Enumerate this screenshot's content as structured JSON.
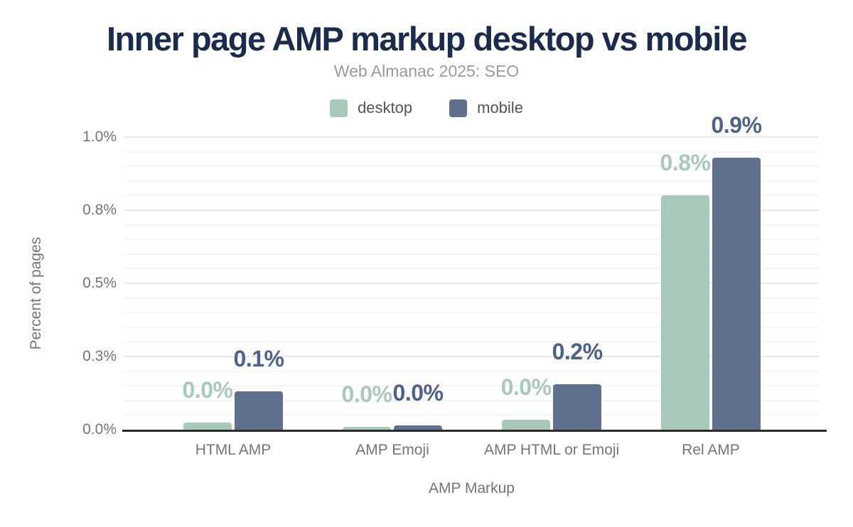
{
  "chart_data": {
    "type": "bar",
    "title": "Inner page AMP markup desktop vs mobile",
    "subtitle": "Web Almanac 2025: SEO",
    "xlabel": "AMP Markup",
    "ylabel": "Percent of pages",
    "categories": [
      "HTML AMP",
      "AMP Emoji",
      "AMP HTML or Emoji",
      "Rel AMP"
    ],
    "series": [
      {
        "name": "desktop",
        "color": "#a9c9ba",
        "label_color": "#a9c9ba",
        "values": [
          0.025,
          0.01,
          0.035,
          0.8
        ],
        "labels": [
          "0.0%",
          "0.0%",
          "0.0%",
          "0.8%"
        ]
      },
      {
        "name": "mobile",
        "color": "#61718d",
        "label_color": "#4e6186",
        "values": [
          0.13,
          0.015,
          0.155,
          0.93
        ],
        "labels": [
          "0.1%",
          "0.0%",
          "0.2%",
          "0.9%"
        ]
      }
    ],
    "ylim": [
      0,
      1.0
    ],
    "yticks": [
      {
        "value": 0.0,
        "label": "0.0%"
      },
      {
        "value": 0.25,
        "label": "0.3%"
      },
      {
        "value": 0.5,
        "label": "0.5%"
      },
      {
        "value": 0.75,
        "label": "0.8%"
      },
      {
        "value": 1.0,
        "label": "1.0%"
      }
    ],
    "minor_grid_step": 0.05,
    "grid": true,
    "legend_position": "top-center",
    "category_centers_pct": [
      15.66,
      38.59,
      61.52,
      84.44
    ]
  },
  "colors": {
    "title": "#1b2b4d",
    "subtitle": "#9b9b9b",
    "axis_text": "#757575",
    "legend_text": "#545454",
    "grid_minor": "#f4f4f4",
    "grid_major": "#e9e9e9",
    "axis_line": "#2b2b2b",
    "background": "#ffffff"
  }
}
